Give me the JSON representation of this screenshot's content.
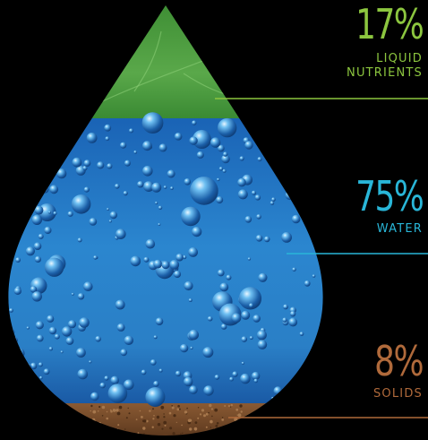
{
  "chart_data": {
    "type": "stacked-area",
    "shape": "water-drop",
    "segments": [
      {
        "label_lines": [
          "LIQUID",
          "NUTRIENTS"
        ],
        "value": 17,
        "value_label": "17%",
        "color": "#8cc63f"
      },
      {
        "label_lines": [
          "WATER"
        ],
        "value": 75,
        "value_label": "75%",
        "color": "#29b6d8"
      },
      {
        "label_lines": [
          "SOLIDS"
        ],
        "value": 8,
        "value_label": "8%",
        "color": "#b06a3b"
      }
    ]
  },
  "colors": {
    "background": "#000000",
    "nutrients_fill": "#4a9a3c",
    "water_fill": "#2470b8",
    "solids_fill": "#7a4a28"
  }
}
